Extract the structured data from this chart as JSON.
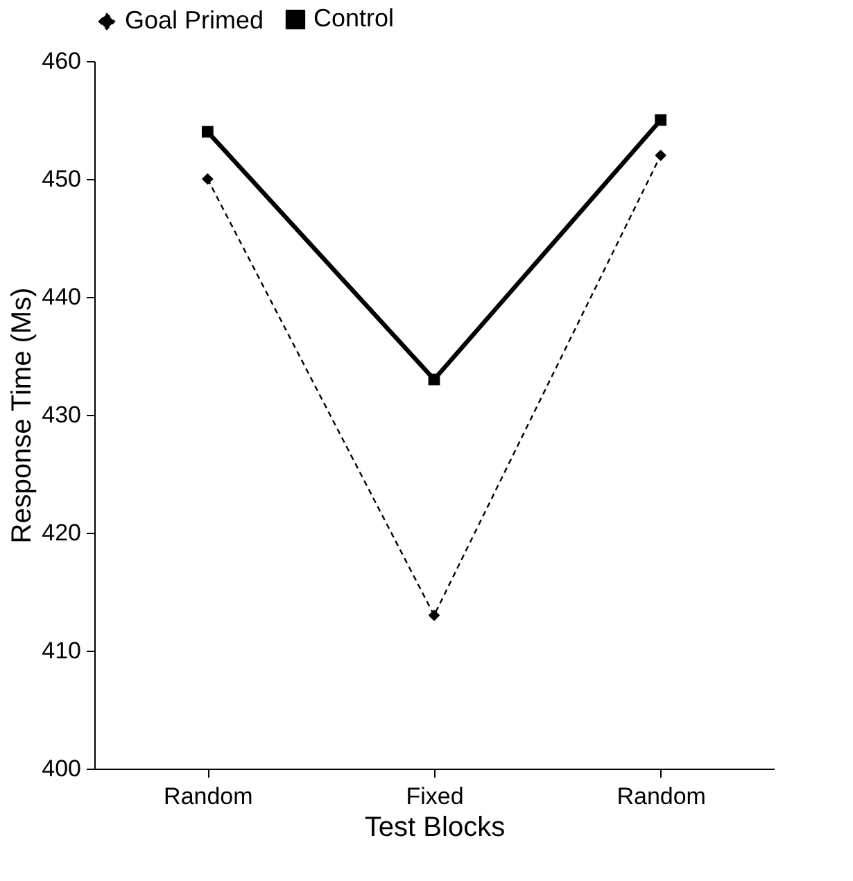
{
  "chart_data": {
    "type": "line",
    "xlabel": "Test Blocks",
    "ylabel": "Response Time (Ms)",
    "categories": [
      "Random",
      "Fixed",
      "Random"
    ],
    "series": [
      {
        "name": "Goal Primed",
        "color": "#000000",
        "values": [
          450,
          413,
          452
        ],
        "marker": "diamond",
        "line_style": "dashed"
      },
      {
        "name": "Control",
        "color": "#000000",
        "values": [
          454,
          433,
          455
        ],
        "marker": "square",
        "line_style": "solid"
      }
    ],
    "ylim": [
      400,
      460
    ],
    "yticks": [
      400,
      410,
      420,
      430,
      440,
      450,
      460
    ],
    "grid": false,
    "legend": "top"
  }
}
